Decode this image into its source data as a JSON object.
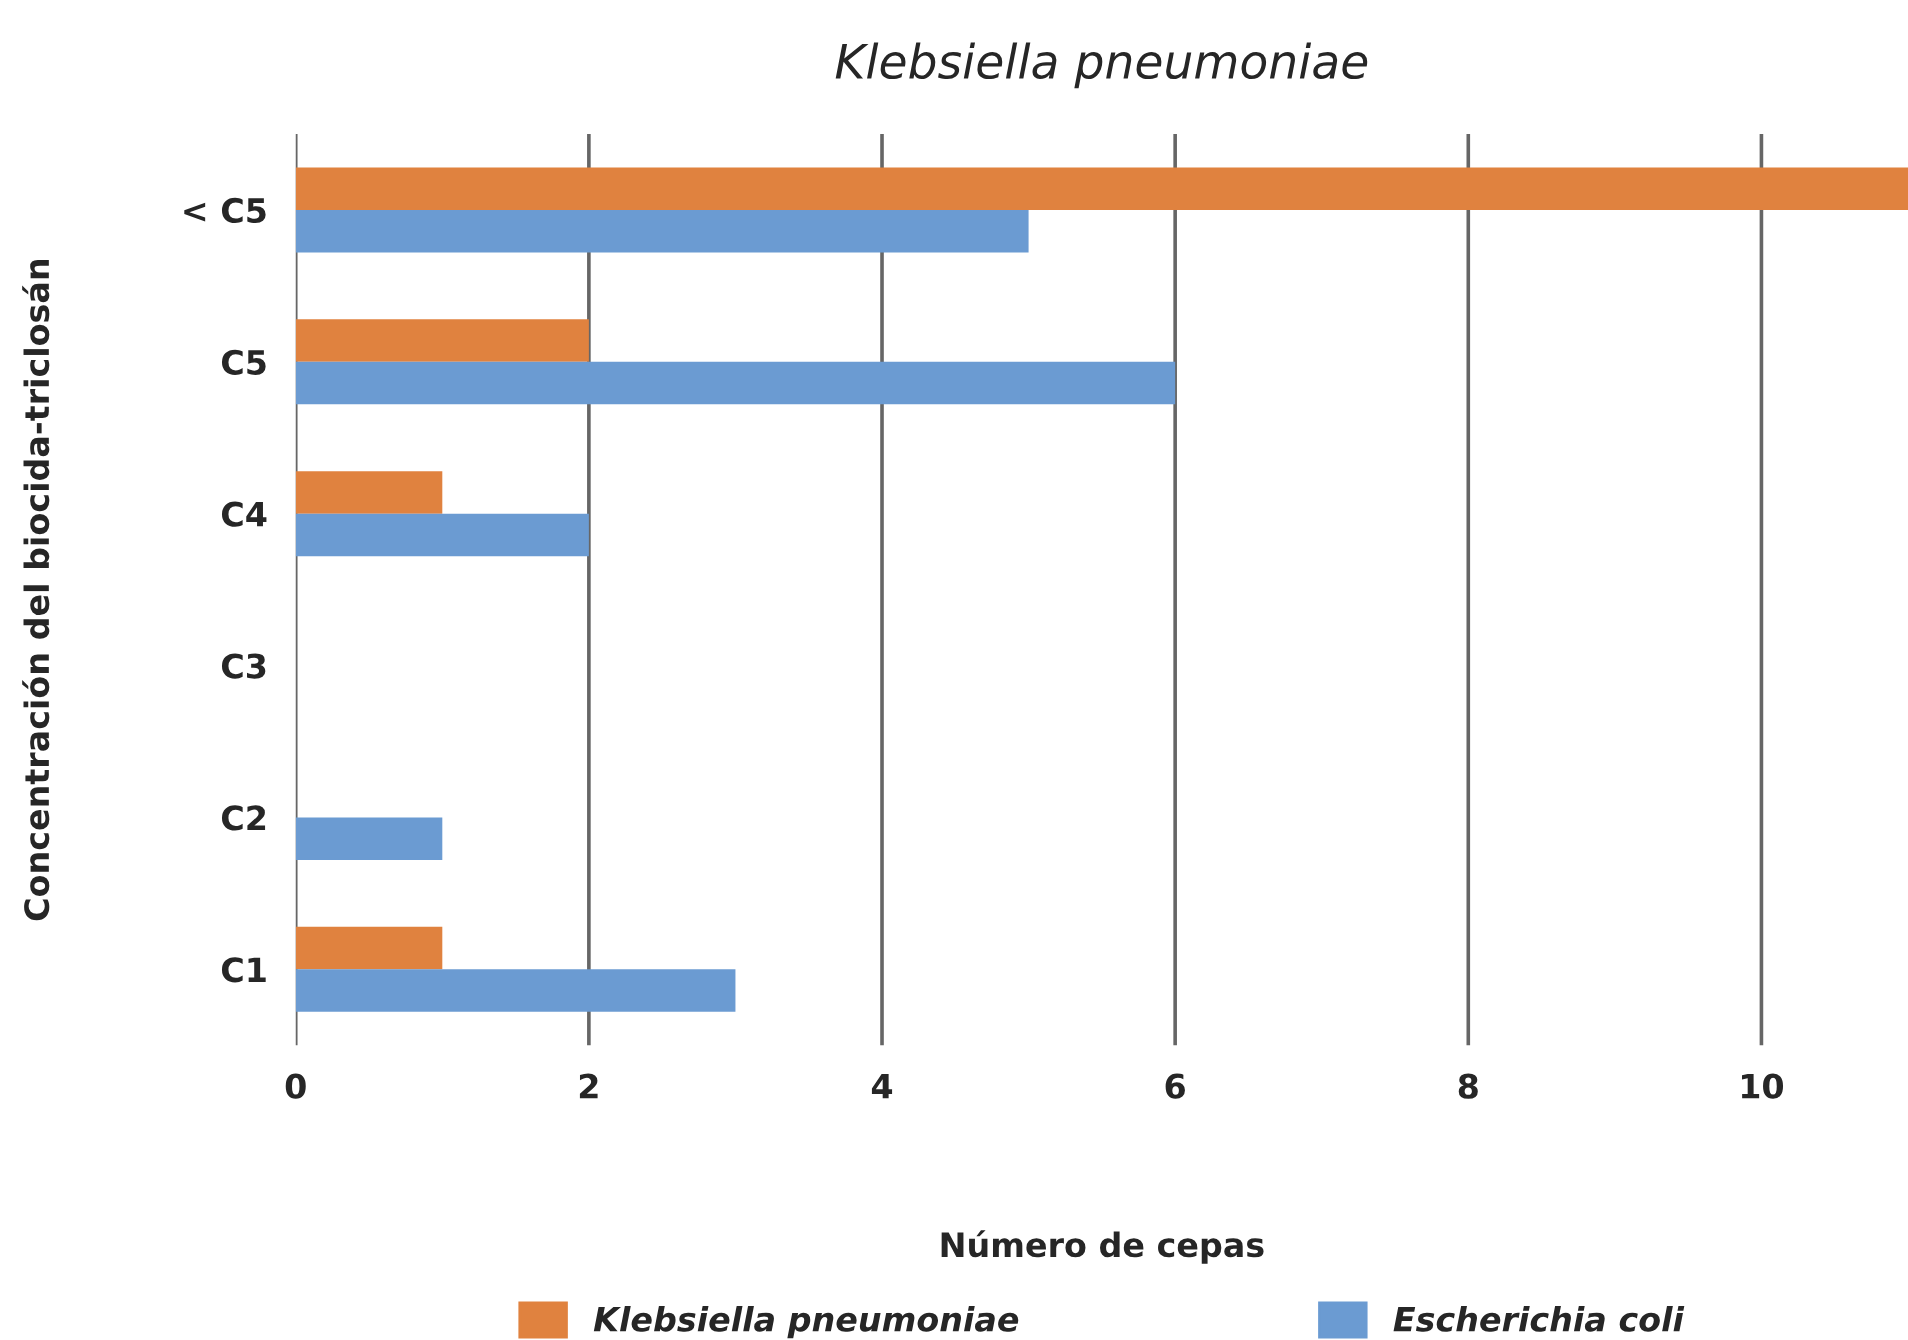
{
  "chart_data": {
    "type": "bar",
    "orientation": "horizontal",
    "title": "Klebsiella pneumoniae",
    "xlabel": "Número de cepas",
    "ylabel": "Concentración del biocida-triclosán",
    "categories": [
      "< C5",
      "C5",
      "C4",
      "C3",
      "C2",
      "C1"
    ],
    "series": [
      {
        "name": "Klebsiella pneumoniae",
        "color": "#e0823f",
        "values": [
          11,
          2,
          1,
          0,
          0,
          1
        ]
      },
      {
        "name": "Escherichia coli",
        "color": "#6b9bd2",
        "values": [
          5,
          6,
          2,
          0,
          1,
          3
        ]
      }
    ],
    "xlim": [
      0,
      11
    ],
    "xticks": [
      0,
      2,
      4,
      6,
      8,
      10
    ],
    "grid": "x",
    "legend": "bottom"
  }
}
